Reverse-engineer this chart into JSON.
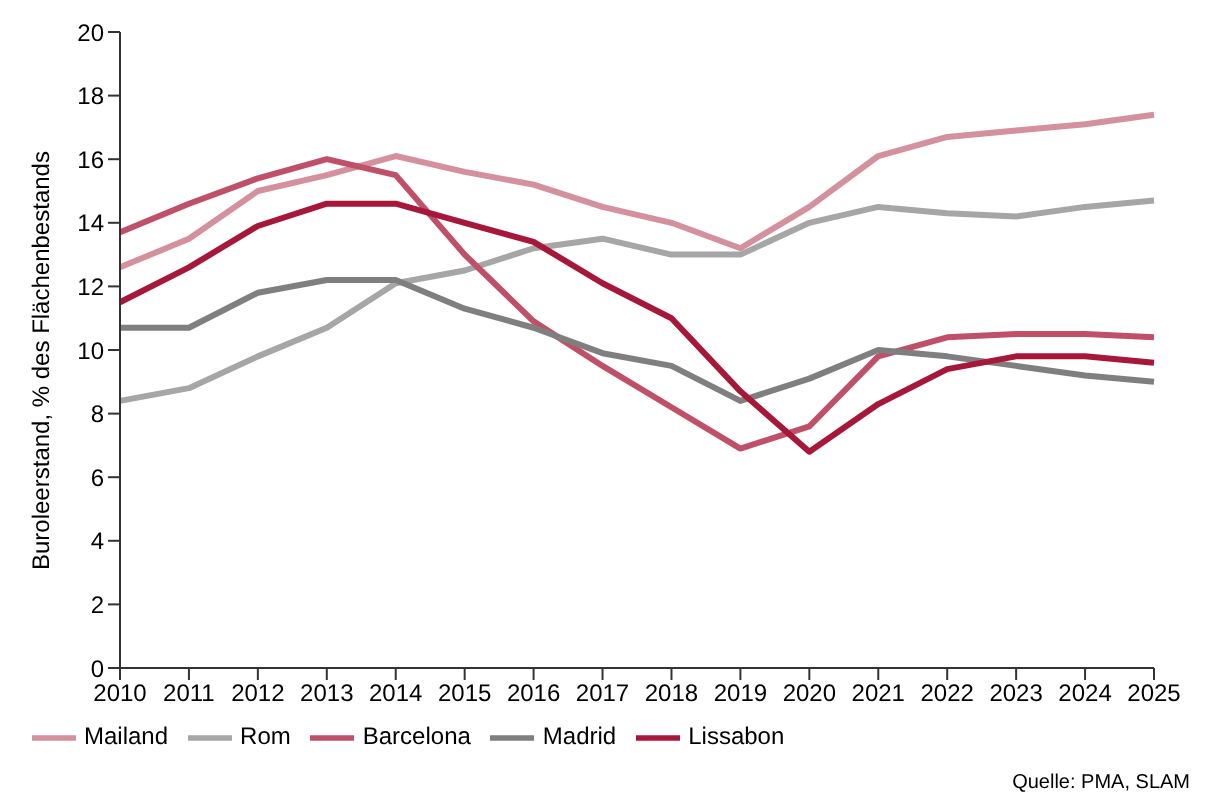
{
  "chart_data": {
    "type": "line",
    "ylabel": "Buroleerstand, % des Flächenbestands",
    "categories": [
      "2010",
      "2011",
      "2012",
      "2013",
      "2014",
      "2015",
      "2016",
      "2017",
      "2018",
      "2019",
      "2020",
      "2021",
      "2022",
      "2023",
      "2024",
      "2025"
    ],
    "series": [
      {
        "name": "Mailand",
        "color": "#d4909c",
        "values": [
          12.6,
          13.5,
          15.0,
          15.5,
          16.1,
          15.6,
          15.2,
          14.5,
          14.0,
          13.2,
          14.5,
          16.1,
          16.7,
          16.9,
          17.1,
          17.4
        ]
      },
      {
        "name": "Rom",
        "color": "#a6a6a6",
        "values": [
          8.4,
          8.8,
          9.8,
          10.7,
          12.1,
          12.5,
          13.2,
          13.5,
          13.0,
          13.0,
          14.0,
          14.5,
          14.3,
          14.2,
          14.5,
          14.7
        ]
      },
      {
        "name": "Barcelona",
        "color": "#c05068",
        "values": [
          13.7,
          14.6,
          15.4,
          16.0,
          15.5,
          13.0,
          10.9,
          9.5,
          8.2,
          6.9,
          7.6,
          9.8,
          10.4,
          10.5,
          10.5,
          10.4
        ]
      },
      {
        "name": "Madrid",
        "color": "#7f7f7f",
        "values": [
          10.7,
          10.7,
          11.8,
          12.2,
          12.2,
          11.3,
          10.7,
          9.9,
          9.5,
          8.4,
          9.1,
          10.0,
          9.8,
          9.5,
          9.2,
          9.0
        ]
      },
      {
        "name": "Lissabon",
        "color": "#a6173a",
        "values": [
          11.5,
          12.6,
          13.9,
          14.6,
          14.6,
          14.0,
          13.4,
          12.1,
          11.0,
          8.7,
          6.8,
          8.3,
          9.4,
          9.8,
          9.8,
          9.6
        ]
      }
    ],
    "ylim": [
      0,
      20
    ],
    "yticks": [
      0,
      2,
      4,
      6,
      8,
      10,
      12,
      14,
      16,
      18,
      20
    ],
    "grid": false,
    "legend": "bottom left",
    "marker": "none",
    "line_style": "solid",
    "annotations": [
      "Quelle: PMA, SLAM"
    ]
  }
}
